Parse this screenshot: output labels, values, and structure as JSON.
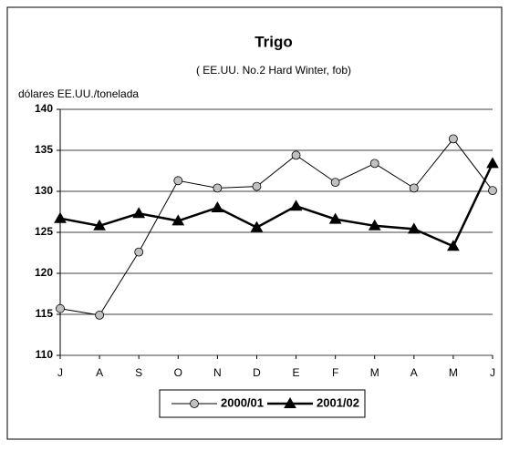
{
  "chart_data": {
    "type": "line",
    "title": "Trigo",
    "subtitle": "( EE.UU. No.2 Hard Winter, fob)",
    "y_label": "dólares EE.UU./tonelada",
    "categories": [
      "J",
      "A",
      "S",
      "O",
      "N",
      "D",
      "E",
      "F",
      "M",
      "A",
      "M",
      "J"
    ],
    "series": [
      {
        "name": "2000/01",
        "color": "#c0c0c0",
        "marker": "circle",
        "values": [
          115.7,
          114.9,
          122.6,
          131.3,
          130.4,
          130.6,
          134.4,
          131.1,
          133.4,
          130.4,
          136.4,
          130.1
        ]
      },
      {
        "name": "2001/02",
        "color": "#000000",
        "marker": "triangle",
        "values": [
          126.7,
          125.8,
          127.3,
          126.4,
          128.0,
          125.6,
          128.2,
          126.6,
          125.8,
          125.4,
          123.3,
          133.4
        ]
      }
    ],
    "ylim": [
      110,
      140
    ],
    "yticks": [
      110,
      115,
      120,
      125,
      130,
      135,
      140
    ],
    "grid": true,
    "legend": "bottom"
  }
}
